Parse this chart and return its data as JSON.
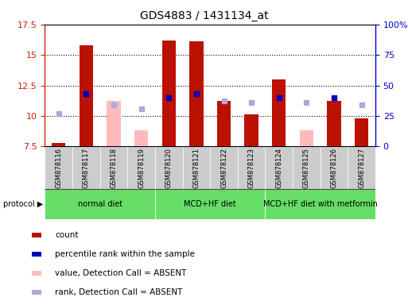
{
  "title": "GDS4883 / 1431134_at",
  "samples": [
    "GSM878116",
    "GSM878117",
    "GSM878118",
    "GSM878119",
    "GSM878120",
    "GSM878121",
    "GSM878122",
    "GSM878123",
    "GSM878124",
    "GSM878125",
    "GSM878126",
    "GSM878127"
  ],
  "count_values": [
    7.8,
    15.8,
    null,
    null,
    16.2,
    16.1,
    11.2,
    10.1,
    13.0,
    null,
    11.2,
    9.8
  ],
  "count_absent_values": [
    null,
    null,
    11.2,
    8.8,
    null,
    null,
    null,
    null,
    null,
    8.8,
    null,
    null
  ],
  "percentile_values": [
    null,
    11.8,
    null,
    null,
    11.5,
    11.8,
    null,
    null,
    11.5,
    null,
    11.5,
    null
  ],
  "percentile_absent_values": [
    10.2,
    null,
    10.9,
    10.6,
    null,
    null,
    11.2,
    11.1,
    null,
    11.1,
    null,
    10.9
  ],
  "ylim_left": [
    7.5,
    17.5
  ],
  "ylim_right": [
    0,
    100
  ],
  "yticks_left": [
    7.5,
    10.0,
    12.5,
    15.0,
    17.5
  ],
  "yticks_right": [
    0,
    25,
    50,
    75,
    100
  ],
  "ytick_labels_right": [
    "0",
    "25",
    "50",
    "75",
    "100%"
  ],
  "ytick_labels_left": [
    "7.5",
    "10",
    "12.5",
    "15",
    "17.5"
  ],
  "protocol_groups": [
    {
      "label": "normal diet",
      "start": 0,
      "end": 3
    },
    {
      "label": "MCD+HF diet",
      "start": 4,
      "end": 7
    },
    {
      "label": "MCD+HF diet with metformin",
      "start": 8,
      "end": 11
    }
  ],
  "protocol_color": "#66dd66",
  "bar_width": 0.5,
  "count_color": "#bb1100",
  "count_absent_color": "#ffbbbb",
  "percentile_color": "#0000bb",
  "percentile_absent_color": "#aaaadd",
  "background_color": "#ffffff",
  "plot_bg_color": "#ffffff",
  "sample_cell_color": "#cccccc",
  "left_axis_color": "#cc2200",
  "right_axis_color": "#0000cc",
  "grid_color": "black",
  "grid_linestyle": ":",
  "grid_linewidth": 0.8,
  "legend_items": [
    {
      "color": "#bb1100",
      "label": "count"
    },
    {
      "color": "#0000bb",
      "label": "percentile rank within the sample"
    },
    {
      "color": "#ffbbbb",
      "label": "value, Detection Call = ABSENT"
    },
    {
      "color": "#aaaadd",
      "label": "rank, Detection Call = ABSENT"
    }
  ]
}
